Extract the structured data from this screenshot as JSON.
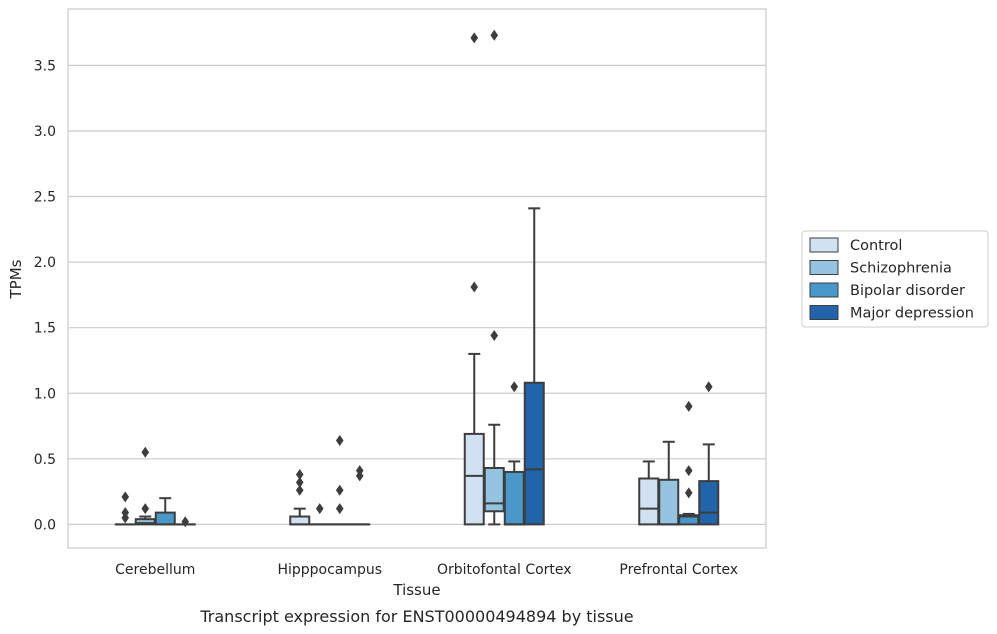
{
  "caption": "Transcript expression for ENST00000494894 by tissue",
  "chart_data": {
    "type": "box",
    "xlabel": "Tissue",
    "ylabel": "TPMs",
    "ylim": [
      -0.18,
      3.93
    ],
    "yticks": [
      "0.0",
      "0.5",
      "1.0",
      "1.5",
      "2.0",
      "2.5",
      "3.0",
      "3.5"
    ],
    "ytick_values": [
      0,
      0.5,
      1.0,
      1.5,
      2.0,
      2.5,
      3.0,
      3.5
    ],
    "grid": "horizontal",
    "legend_position": "right",
    "categories": [
      "Cerebellum",
      "Hipppocampus",
      "Orbitofontal Cortex",
      "Prefrontal Cortex"
    ],
    "series": [
      {
        "name": "Control",
        "color": "#d0e1f2",
        "boxes": [
          {
            "q1": 0,
            "median": 0,
            "q3": 0,
            "whisker_low": 0,
            "whisker_high": 0,
            "outliers": [
              0.05,
              0.09,
              0.21
            ]
          },
          {
            "q1": 0,
            "median": 0,
            "q3": 0.06,
            "whisker_low": 0,
            "whisker_high": 0.12,
            "outliers": [
              0.26,
              0.32,
              0.38
            ]
          },
          {
            "q1": 0,
            "median": 0.37,
            "q3": 0.69,
            "whisker_low": 0,
            "whisker_high": 1.3,
            "outliers": [
              1.81,
              3.71
            ]
          },
          {
            "q1": 0,
            "median": 0.12,
            "q3": 0.35,
            "whisker_low": 0,
            "whisker_high": 0.48,
            "outliers": []
          }
        ]
      },
      {
        "name": "Schizophrenia",
        "color": "#94c4df",
        "boxes": [
          {
            "q1": 0,
            "median": 0.01,
            "q3": 0.04,
            "whisker_low": 0,
            "whisker_high": 0.06,
            "outliers": [
              0.12,
              0.55
            ]
          },
          {
            "q1": 0,
            "median": 0,
            "q3": 0,
            "whisker_low": 0,
            "whisker_high": 0,
            "outliers": [
              0.12
            ]
          },
          {
            "q1": 0.1,
            "median": 0.16,
            "q3": 0.43,
            "whisker_low": 0,
            "whisker_high": 0.76,
            "outliers": [
              1.44,
              3.73
            ]
          },
          {
            "q1": 0,
            "median": 0,
            "q3": 0.34,
            "whisker_low": 0,
            "whisker_high": 0.63,
            "outliers": []
          }
        ]
      },
      {
        "name": "Bipolar disorder",
        "color": "#4a98c9",
        "boxes": [
          {
            "q1": 0,
            "median": 0,
            "q3": 0.09,
            "whisker_low": 0,
            "whisker_high": 0.2,
            "outliers": []
          },
          {
            "q1": 0,
            "median": 0,
            "q3": 0,
            "whisker_low": 0,
            "whisker_high": 0,
            "outliers": [
              0.12,
              0.26,
              0.64
            ]
          },
          {
            "q1": 0,
            "median": 0,
            "q3": 0.4,
            "whisker_low": 0,
            "whisker_high": 0.48,
            "outliers": [
              1.05
            ]
          },
          {
            "q1": 0,
            "median": 0.06,
            "q3": 0.07,
            "whisker_low": 0,
            "whisker_high": 0.08,
            "outliers": [
              0.24,
              0.41,
              0.9
            ]
          }
        ]
      },
      {
        "name": "Major depression",
        "color": "#2164aa",
        "boxes": [
          {
            "q1": 0,
            "median": 0,
            "q3": 0,
            "whisker_low": 0,
            "whisker_high": 0,
            "outliers": [
              0.02
            ]
          },
          {
            "q1": 0,
            "median": 0,
            "q3": 0,
            "whisker_low": 0,
            "whisker_high": 0,
            "outliers": [
              0.37,
              0.41
            ]
          },
          {
            "q1": 0,
            "median": 0.42,
            "q3": 1.08,
            "whisker_low": 0,
            "whisker_high": 2.41,
            "outliers": []
          },
          {
            "q1": 0,
            "median": 0.09,
            "q3": 0.33,
            "whisker_low": 0,
            "whisker_high": 0.61,
            "outliers": [
              1.05
            ]
          }
        ]
      }
    ]
  }
}
